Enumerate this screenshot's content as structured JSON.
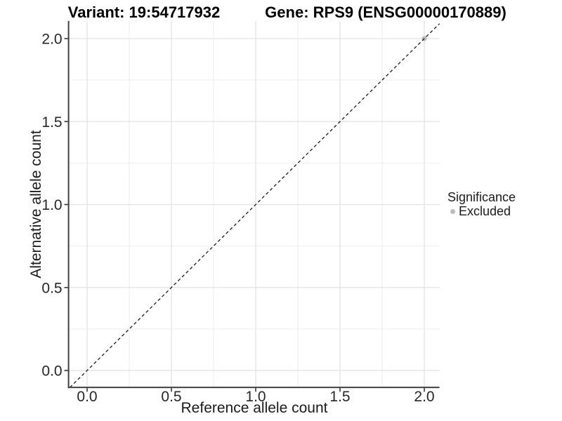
{
  "chart_data": {
    "type": "scatter",
    "title_left": "Variant: 19:54717932",
    "title_right": "Gene: RPS9 (ENSG00000170889)",
    "xlabel": "Reference allele count",
    "ylabel": "Alternative allele count",
    "xlim": [
      -0.11,
      2.09
    ],
    "ylim": [
      -0.102,
      2.106
    ],
    "xticks": {
      "values": [
        0,
        0.5,
        1,
        1.5,
        2
      ],
      "labels": [
        "0.0",
        "0.5",
        "1.0",
        "1.5",
        "2.0"
      ]
    },
    "yticks": {
      "values": [
        0,
        0.5,
        1,
        1.5,
        2
      ],
      "labels": [
        "0.0",
        "0.5",
        "1.0",
        "1.5",
        "2.0"
      ]
    },
    "xticks_minor": [
      0.25,
      0.75,
      1.25,
      1.75
    ],
    "yticks_minor": [
      0.25,
      0.75,
      1.25,
      1.75
    ],
    "grid": {
      "show": true,
      "major_color": "#e2e2e2",
      "minor_color": "#ededed"
    },
    "axis": {
      "line_color": "#404040",
      "tick_color": "#333333",
      "text_color": "#262626"
    },
    "reference_line": {
      "kind": "identity y=x",
      "style": "dashed",
      "color": "#1a1a1a"
    },
    "series": [
      {
        "name": "Excluded",
        "color": "#bcbcbc",
        "points": [
          [
            2.0,
            2.0
          ]
        ]
      }
    ],
    "legend": {
      "title": "Significance",
      "position": "right",
      "items": [
        {
          "label": "Excluded",
          "color": "#bcbcbc",
          "marker": "circle"
        }
      ]
    }
  }
}
